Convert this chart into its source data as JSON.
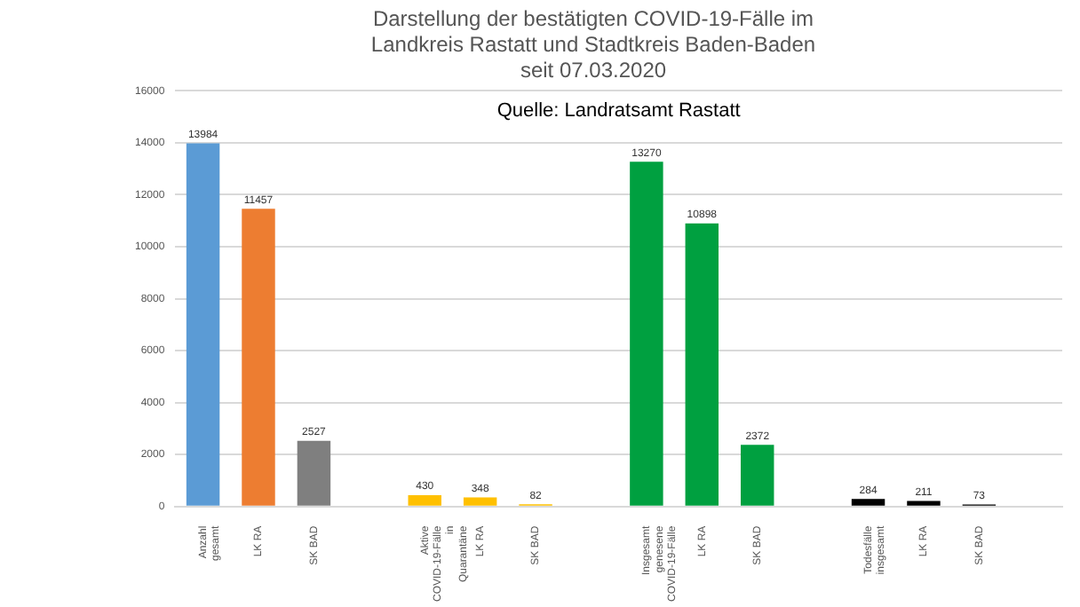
{
  "chart_data": {
    "type": "bar",
    "title": "Darstellung der bestätigten COVID-19-Fälle im\nLandkreis Rastatt und Stadtkreis Baden-Baden\nseit 07.03.2020",
    "categories": [
      "Anzahl gesamt",
      "LK RA",
      "SK BAD",
      null,
      "Aktive COVID-19-Fälle in Quarantäne",
      "LK RA",
      "SK BAD",
      null,
      "Insgesamt genesene COVID-19-Fälle",
      "LK RA",
      "SK BAD",
      null,
      "Todesfälle insgesamt",
      "LK RA",
      "SK BAD",
      null
    ],
    "values": [
      13984,
      11457,
      2527,
      null,
      430,
      348,
      82,
      null,
      13270,
      10898,
      2372,
      null,
      284,
      211,
      73,
      null
    ],
    "colors": [
      "#5b9bd5",
      "#ed7d31",
      "#7f7f7f",
      "#ffffff",
      "#ffc000",
      "#ffc000",
      "#ffc000",
      "#ffffff",
      "#00a040",
      "#00a040",
      "#00a040",
      "#ffffff",
      "#000000",
      "#000000",
      "#000000",
      "#ffffff"
    ],
    "ylim": [
      0,
      16000
    ],
    "yticks": [
      0,
      2000,
      4000,
      6000,
      8000,
      10000,
      12000,
      14000,
      16000
    ],
    "grid": "y",
    "data_labels": true,
    "annotations": [
      "Quelle: Landratsamt Rastatt"
    ]
  }
}
